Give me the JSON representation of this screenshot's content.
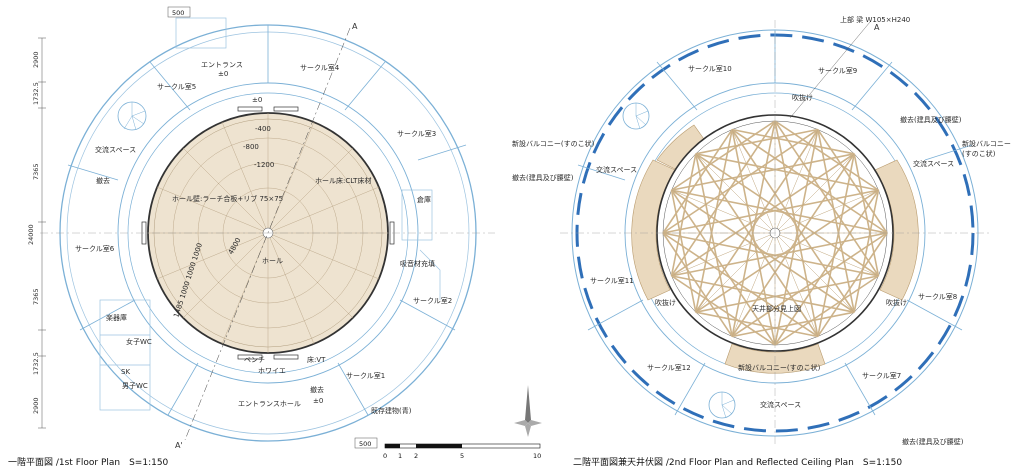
{
  "first_floor": {
    "caption": "一階平面図 /1st Floor Plan　S=1:150",
    "rooms": {
      "circle_4": "サークル室4",
      "circle_5": "サークル室5",
      "circle_3": "サークル室3",
      "circle_6": "サークル室6",
      "circle_2": "サークル室2",
      "circle_1": "サークル室1",
      "entrance": "エントランス",
      "entrance_level": "±0",
      "exchange_space": "交流スペース",
      "removed": "撤去",
      "storage": "倉庫",
      "instrument_room": "楽器庫",
      "womens_wc": "女子WC",
      "mens_wc": "男子WC",
      "sk": "SK",
      "hall": "ホール",
      "bench": "ベンチ",
      "foyer": "ホワイエ",
      "entrance_hall": "エントランスホール",
      "removed_bottom": "撤去",
      "removed_bottom_level": "±0",
      "existing_building": "既存建物(青)"
    },
    "notes": {
      "hall_wall": "ホール壁:ラーチ合板+リブ 75×75",
      "hall_floor": "ホール床:CLT床材",
      "sound_absorbing": "吸音材充填",
      "floor_vt": "床:VT",
      "level_top": "±0"
    },
    "levels": [
      "-400",
      "-800",
      "-1200"
    ],
    "hall_radius": "4800",
    "step_dims": "1485 1000 1000 1000",
    "dimensions": [
      "2900",
      "1732.5",
      "7365",
      "24000",
      "7365",
      "1732.5",
      "2900"
    ],
    "tag_top": "500",
    "tag_bottom": "500",
    "section_marks": [
      "A",
      "A'"
    ]
  },
  "second_floor": {
    "caption": "二階平面図兼天井伏図 /2nd Floor Plan and Reflected Ceiling Plan　S=1:150",
    "beam_note": "上部 梁 W105×H240",
    "rooms": {
      "circle_10": "サークル室10",
      "circle_9": "サークル室9",
      "circle_11": "サークル室11",
      "circle_8": "サークル室8",
      "circle_12": "サークル室12",
      "circle_7": "サークル室7",
      "exchange_left": "交流スペース",
      "exchange_right": "交流スペース",
      "exchange_bottom": "交流スペース"
    },
    "notes": {
      "void_top": "吹抜け",
      "void_left": "吹抜け",
      "void_right": "吹抜け",
      "new_balcony_left": "新設バルコニー(すのこ状)",
      "new_balcony_right_1": "新設バルコニー",
      "new_balcony_right_2": "(すのこ状)",
      "new_balcony_bottom": "新設バルコニー(すのこ状)",
      "removed_left": "撤去(建具及び腰壁)",
      "removed_right": "撤去(建具及び腰壁)",
      "removed_bottom": "撤去(建具及び腰壁)",
      "ceiling_view": "天井部分見上図"
    },
    "section_marks": [
      "A"
    ]
  },
  "scale_bar": {
    "labels": [
      "0",
      "1",
      "2",
      "5",
      "10"
    ]
  },
  "colors": {
    "line_blue": "#7bb0d6",
    "existing_blue": "#2f6fb8",
    "hall_fill": "#eee3d0",
    "timber": "#cdb38a",
    "ink": "#2a2a2a"
  }
}
